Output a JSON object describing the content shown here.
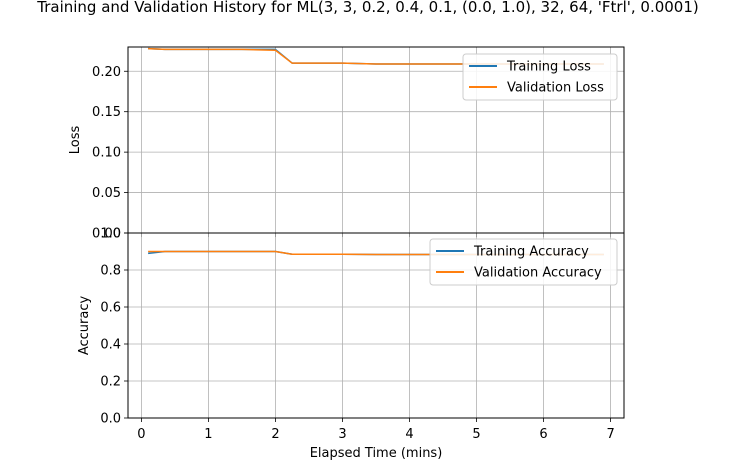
{
  "figure": {
    "title": "Training and Validation History for ML(3, 3, 0.2, 0.4, 0.1, (0.0, 1.0), 32, 64, 'Ftrl', 0.0001)"
  },
  "colors": {
    "training": "#1f77b4",
    "validation": "#ff7f0e",
    "grid": "#b0b0b0"
  },
  "chart_data": [
    {
      "type": "line",
      "ylabel": "Loss",
      "xlabel": "",
      "xlim": [
        -0.2,
        7.2
      ],
      "ylim": [
        0,
        0.23
      ],
      "yticks": [
        0.0,
        0.05,
        0.1,
        0.15,
        0.2
      ],
      "ytick_labels": [
        "0.00",
        "0.05",
        "0.10",
        "0.15",
        "0.20"
      ],
      "xticks": [
        0,
        1,
        2,
        3,
        4,
        5,
        6,
        7
      ],
      "grid": true,
      "legend": "upper right",
      "x": [
        0.1,
        0.35,
        1.0,
        1.5,
        2.0,
        2.25,
        2.75,
        3.0,
        3.5,
        4.0,
        4.5,
        5.0,
        5.5,
        6.0,
        6.5,
        6.9
      ],
      "series": [
        {
          "name": "Training Loss",
          "values": [
            0.228,
            0.227,
            0.227,
            0.227,
            0.227,
            0.21,
            0.21,
            0.21,
            0.209,
            0.209,
            0.209,
            0.209,
            0.209,
            0.209,
            0.209,
            0.209
          ]
        },
        {
          "name": "Validation Loss",
          "values": [
            0.228,
            0.227,
            0.227,
            0.227,
            0.226,
            0.21,
            0.21,
            0.21,
            0.209,
            0.209,
            0.209,
            0.209,
            0.209,
            0.209,
            0.209,
            0.209
          ]
        }
      ]
    },
    {
      "type": "line",
      "ylabel": "Accuracy",
      "xlabel": "Elapsed Time (mins)",
      "xlim": [
        -0.2,
        7.2
      ],
      "ylim": [
        0,
        1.0
      ],
      "yticks": [
        0.0,
        0.2,
        0.4,
        0.6,
        0.8,
        1.0
      ],
      "ytick_labels": [
        "0.0",
        "0.2",
        "0.4",
        "0.6",
        "0.8",
        "1.0"
      ],
      "xticks": [
        0,
        1,
        2,
        3,
        4,
        5,
        6,
        7
      ],
      "xtick_labels": [
        "0",
        "1",
        "2",
        "3",
        "4",
        "5",
        "6",
        "7"
      ],
      "grid": true,
      "legend": "upper right",
      "x": [
        0.1,
        0.35,
        1.0,
        1.5,
        2.0,
        2.25,
        2.75,
        3.0,
        3.5,
        4.0,
        4.5,
        5.0,
        5.5,
        6.0,
        6.5,
        6.9
      ],
      "series": [
        {
          "name": "Training Accuracy",
          "values": [
            0.89,
            0.9,
            0.9,
            0.9,
            0.9,
            0.885,
            0.885,
            0.885,
            0.884,
            0.884,
            0.884,
            0.884,
            0.884,
            0.884,
            0.884,
            0.884
          ]
        },
        {
          "name": "Validation Accuracy",
          "values": [
            0.9,
            0.9,
            0.9,
            0.9,
            0.9,
            0.885,
            0.885,
            0.885,
            0.884,
            0.884,
            0.884,
            0.884,
            0.884,
            0.884,
            0.884,
            0.884
          ]
        }
      ]
    }
  ]
}
